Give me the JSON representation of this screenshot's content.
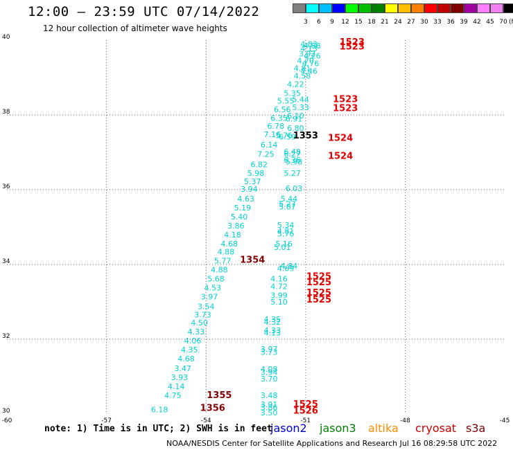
{
  "header": {
    "title": "12:00 – 23:59 UTC 07/14/2022",
    "subtitle": "12 hour collection of altimeter wave heights"
  },
  "colorbar": {
    "colors": [
      "#7f7f7f",
      "#00ffff",
      "#00bfff",
      "#0000ff",
      "#00ff00",
      "#00bf00",
      "#008000",
      "#ffff00",
      "#ffbf00",
      "#ff8000",
      "#ff0000",
      "#bf0000",
      "#800000",
      "#a000a0",
      "#ff80ff",
      "#ee82ee",
      "#000000"
    ],
    "labels": [
      "3",
      "6",
      "9",
      "12",
      "15",
      "18",
      "21",
      "24",
      "27",
      "30",
      "33",
      "36",
      "39",
      "42",
      "45",
      "70"
    ],
    "unit": "(ft)"
  },
  "footer": {
    "note": "note: 1) Time is in UTC; 2) SWH is in feet",
    "satellites": [
      {
        "name": "jason2",
        "color": "#0000cc"
      },
      {
        "name": "jason3",
        "color": "#008000"
      },
      {
        "name": "altika",
        "color": "#ff8c00"
      },
      {
        "name": "cryosat",
        "color": "#cc0000"
      },
      {
        "name": "s3a",
        "color": "#800000"
      }
    ],
    "credit": "NOAA/NESDIS Center for Satellite Applications and Research   Jul 16 08:29:58 UTC 2022"
  },
  "chart_data": {
    "type": "scatter",
    "title": "12:00 – 23:59 UTC 07/14/2022",
    "xlabel": "",
    "ylabel": "",
    "xlim": [
      -60,
      -45
    ],
    "ylim": [
      30,
      40
    ],
    "x_ticks": [
      "-60",
      "-57",
      "-54",
      "-51",
      "-48",
      "-45"
    ],
    "y_ticks": [
      "30",
      "32",
      "34",
      "36",
      "38",
      "40"
    ],
    "grid": true,
    "series": [
      {
        "color": "#00d0d0",
        "points": [
          {
            "x": -50.9,
            "y": 39.9,
            "label": "4.83"
          },
          {
            "x": -50.8,
            "y": 39.85,
            "label": "4.88"
          },
          {
            "x": -50.9,
            "y": 39.78,
            "label": "4.13"
          },
          {
            "x": -50.95,
            "y": 39.64,
            "label": "3.92"
          },
          {
            "x": -50.8,
            "y": 39.58,
            "label": "4.26"
          },
          {
            "x": -51.0,
            "y": 39.45,
            "label": "4.70"
          },
          {
            "x": -50.85,
            "y": 39.38,
            "label": "4.76"
          },
          {
            "x": -51.1,
            "y": 39.25,
            "label": "4.81"
          },
          {
            "x": -50.9,
            "y": 39.18,
            "label": "4.46"
          },
          {
            "x": -51.1,
            "y": 39.05,
            "label": "4.58"
          },
          {
            "x": -51.3,
            "y": 38.82,
            "label": "4.22"
          },
          {
            "x": -51.4,
            "y": 38.58,
            "label": "5.35"
          },
          {
            "x": -51.6,
            "y": 38.38,
            "label": "5.55"
          },
          {
            "x": -51.15,
            "y": 38.42,
            "label": "5.44"
          },
          {
            "x": -51.7,
            "y": 38.15,
            "label": "6.56"
          },
          {
            "x": -51.15,
            "y": 38.2,
            "label": "5.33"
          },
          {
            "x": -51.3,
            "y": 37.98,
            "label": "6.10"
          },
          {
            "x": -51.8,
            "y": 37.92,
            "label": "6.35"
          },
          {
            "x": -51.35,
            "y": 37.9,
            "label": "6.91"
          },
          {
            "x": -51.9,
            "y": 37.7,
            "label": "6.78"
          },
          {
            "x": -51.3,
            "y": 37.65,
            "label": "6.80"
          },
          {
            "x": -52.0,
            "y": 37.48,
            "label": "7.16"
          },
          {
            "x": -51.65,
            "y": 37.45,
            "label": "5.76"
          },
          {
            "x": -51.55,
            "y": 37.42,
            "label": "6.59"
          },
          {
            "x": -52.1,
            "y": 37.2,
            "label": "6.14"
          },
          {
            "x": -51.4,
            "y": 37.02,
            "label": "6.48"
          },
          {
            "x": -51.4,
            "y": 36.96,
            "label": "6.27"
          },
          {
            "x": -52.2,
            "y": 36.95,
            "label": "7.25"
          },
          {
            "x": -51.4,
            "y": 36.8,
            "label": "6.36"
          },
          {
            "x": -51.35,
            "y": 36.75,
            "label": "5.98"
          },
          {
            "x": -52.4,
            "y": 36.68,
            "label": "6.82"
          },
          {
            "x": -52.5,
            "y": 36.44,
            "label": "5.98"
          },
          {
            "x": -51.4,
            "y": 36.44,
            "label": "5.27"
          },
          {
            "x": -52.6,
            "y": 36.22,
            "label": "5.37"
          },
          {
            "x": -52.7,
            "y": 36.02,
            "label": "3.94"
          },
          {
            "x": -51.35,
            "y": 36.04,
            "label": "6.03"
          },
          {
            "x": -52.8,
            "y": 35.76,
            "label": "4.63"
          },
          {
            "x": -51.5,
            "y": 35.76,
            "label": "5.44"
          },
          {
            "x": -51.55,
            "y": 35.62,
            "label": "5.27"
          },
          {
            "x": -51.55,
            "y": 35.55,
            "label": "5.87"
          },
          {
            "x": -52.9,
            "y": 35.52,
            "label": "5.19"
          },
          {
            "x": -53.0,
            "y": 35.28,
            "label": "5.40"
          },
          {
            "x": -53.1,
            "y": 35.04,
            "label": "3.86"
          },
          {
            "x": -51.6,
            "y": 35.06,
            "label": "5.34"
          },
          {
            "x": -51.6,
            "y": 34.9,
            "label": "4.81"
          },
          {
            "x": -53.2,
            "y": 34.8,
            "label": "4.18"
          },
          {
            "x": -51.6,
            "y": 34.82,
            "label": "5.76"
          },
          {
            "x": -53.3,
            "y": 34.56,
            "label": "4.68"
          },
          {
            "x": -51.65,
            "y": 34.56,
            "label": "5.16"
          },
          {
            "x": -51.7,
            "y": 34.46,
            "label": "5.01"
          },
          {
            "x": -53.4,
            "y": 34.34,
            "label": "4.88"
          },
          {
            "x": -53.5,
            "y": 34.1,
            "label": "5.77"
          },
          {
            "x": -51.5,
            "y": 33.96,
            "label": "4.84"
          },
          {
            "x": -51.6,
            "y": 33.9,
            "label": "4.69"
          },
          {
            "x": -53.6,
            "y": 33.86,
            "label": "4.88"
          },
          {
            "x": -53.7,
            "y": 33.62,
            "label": "5.68"
          },
          {
            "x": -51.8,
            "y": 33.62,
            "label": "4.16"
          },
          {
            "x": -53.8,
            "y": 33.38,
            "label": "4.53"
          },
          {
            "x": -51.8,
            "y": 33.42,
            "label": "4.72"
          },
          {
            "x": -53.9,
            "y": 33.14,
            "label": "3.97"
          },
          {
            "x": -51.8,
            "y": 33.18,
            "label": "3.99"
          },
          {
            "x": -51.8,
            "y": 33.0,
            "label": "5.10"
          },
          {
            "x": -54.0,
            "y": 32.88,
            "label": "3.54"
          },
          {
            "x": -54.1,
            "y": 32.66,
            "label": "3.73"
          },
          {
            "x": -52.0,
            "y": 32.54,
            "label": "4.35"
          },
          {
            "x": -52.0,
            "y": 32.46,
            "label": "4.32"
          },
          {
            "x": -54.2,
            "y": 32.44,
            "label": "4.50"
          },
          {
            "x": -52.0,
            "y": 32.24,
            "label": "4.33"
          },
          {
            "x": -52.0,
            "y": 32.18,
            "label": "4.13"
          },
          {
            "x": -54.3,
            "y": 32.2,
            "label": "4.33"
          },
          {
            "x": -54.4,
            "y": 31.96,
            "label": "4.06"
          },
          {
            "x": -54.5,
            "y": 31.72,
            "label": "4.35"
          },
          {
            "x": -52.1,
            "y": 31.74,
            "label": "3.97"
          },
          {
            "x": -52.1,
            "y": 31.66,
            "label": "3.73"
          },
          {
            "x": -54.6,
            "y": 31.48,
            "label": "4.68"
          },
          {
            "x": -54.7,
            "y": 31.22,
            "label": "3.47"
          },
          {
            "x": -52.1,
            "y": 31.2,
            "label": "4.08"
          },
          {
            "x": -52.1,
            "y": 31.12,
            "label": "3.94"
          },
          {
            "x": -54.8,
            "y": 30.98,
            "label": "3.93"
          },
          {
            "x": -52.1,
            "y": 30.94,
            "label": "3.70"
          },
          {
            "x": -54.9,
            "y": 30.74,
            "label": "4.14"
          },
          {
            "x": -55.0,
            "y": 30.5,
            "label": "4.75"
          },
          {
            "x": -52.1,
            "y": 30.5,
            "label": "3.48"
          },
          {
            "x": -52.1,
            "y": 30.26,
            "label": "3.91"
          },
          {
            "x": -52.1,
            "y": 30.18,
            "label": "3.86"
          },
          {
            "x": -55.4,
            "y": 30.12,
            "label": "6.18"
          },
          {
            "x": -52.1,
            "y": 30.04,
            "label": "3.50"
          }
        ]
      },
      {
        "color": "#e00000",
        "points": [
          {
            "x": -49.6,
            "y": 39.94,
            "label": "1523"
          },
          {
            "x": -49.6,
            "y": 39.82,
            "label": "1523"
          },
          {
            "x": -49.8,
            "y": 38.42,
            "label": "1523"
          },
          {
            "x": -49.8,
            "y": 38.18,
            "label": "1523"
          },
          {
            "x": -49.95,
            "y": 37.38,
            "label": "1524"
          },
          {
            "x": -49.95,
            "y": 36.9,
            "label": "1524"
          },
          {
            "x": -50.6,
            "y": 33.68,
            "label": "1525"
          },
          {
            "x": -50.6,
            "y": 33.52,
            "label": "1525"
          },
          {
            "x": -50.6,
            "y": 33.24,
            "label": "1525"
          },
          {
            "x": -50.6,
            "y": 33.06,
            "label": "1525"
          },
          {
            "x": -51.0,
            "y": 30.26,
            "label": "1525"
          },
          {
            "x": -51.0,
            "y": 30.08,
            "label": "1526"
          }
        ]
      },
      {
        "color": "#000000",
        "points": [
          {
            "x": -51.0,
            "y": 37.44,
            "label": "1353"
          }
        ]
      },
      {
        "color": "#800000",
        "points": [
          {
            "x": -52.6,
            "y": 34.12,
            "label": "1354"
          },
          {
            "x": -53.6,
            "y": 30.5,
            "label": "1355"
          },
          {
            "x": -53.8,
            "y": 30.16,
            "label": "1356"
          }
        ]
      }
    ]
  }
}
